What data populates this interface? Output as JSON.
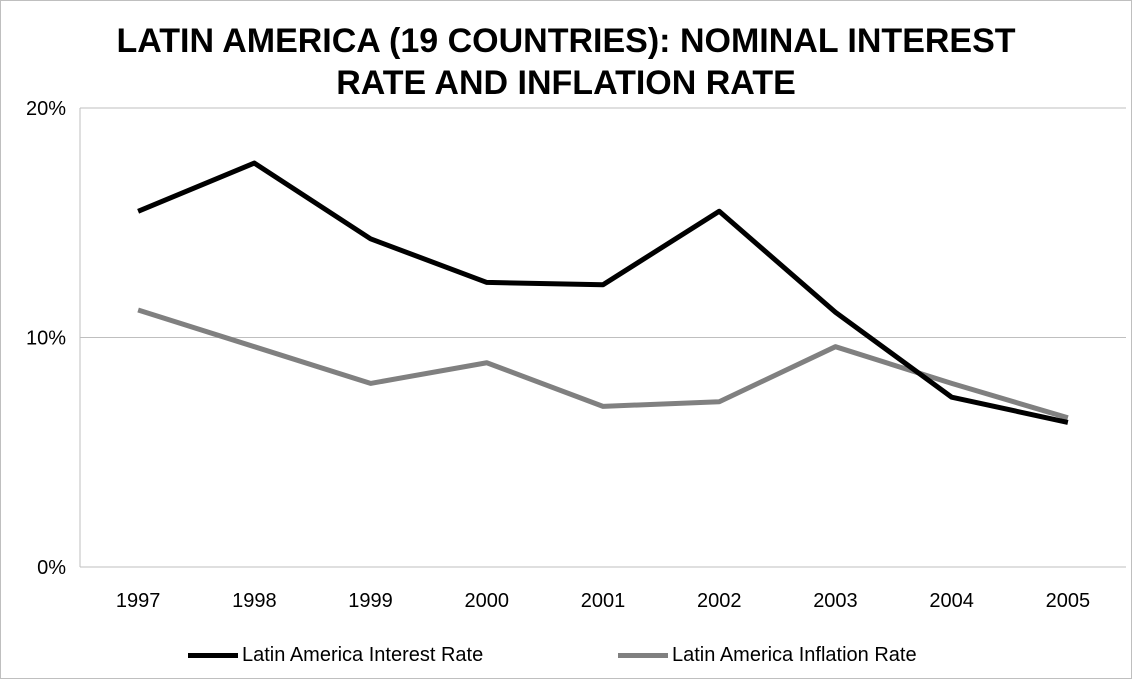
{
  "colors": {
    "interest": "#000000",
    "inflation": "#808080",
    "grid": "#bfbfbf"
  },
  "chart_data": {
    "type": "line",
    "title_lines": [
      "LATIN AMERICA (19 COUNTRIES): NOMINAL INTEREST",
      "RATE AND INFLATION RATE"
    ],
    "x": [
      "1997",
      "1998",
      "1999",
      "2000",
      "2001",
      "2002",
      "2003",
      "2004",
      "2005"
    ],
    "ylim": [
      0,
      20
    ],
    "y_ticks": [
      0,
      10,
      20
    ],
    "y_tick_labels": [
      "0%",
      "10%",
      "20%"
    ],
    "grid": true,
    "legend_position": "bottom",
    "series": [
      {
        "name": "Latin America Interest Rate",
        "values": [
          15.5,
          17.6,
          14.3,
          12.4,
          12.3,
          15.5,
          11.1,
          7.4,
          6.3
        ]
      },
      {
        "name": "Latin America Inflation Rate",
        "values": [
          11.2,
          9.6,
          8.0,
          8.9,
          7.0,
          7.2,
          9.6,
          8.0,
          6.5
        ]
      }
    ]
  }
}
